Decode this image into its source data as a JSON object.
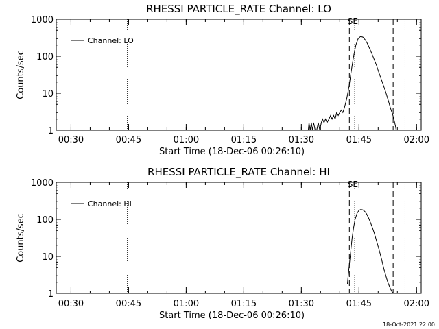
{
  "chart_data": [
    {
      "type": "line",
      "title": "RHESSI PARTICLE_RATE Channel: LO",
      "xlabel": "Start Time (18-Dec-06 00:26:10)",
      "ylabel": "Counts/sec",
      "yscale": "log",
      "ylim": [
        1,
        1000
      ],
      "xlim_minutes": [
        26.17,
        121.2
      ],
      "x_ticks": [
        {
          "min": 30,
          "label": "00:30"
        },
        {
          "min": 45,
          "label": "00:45"
        },
        {
          "min": 60,
          "label": "01:00"
        },
        {
          "min": 75,
          "label": "01:15"
        },
        {
          "min": 90,
          "label": "01:30"
        },
        {
          "min": 105,
          "label": "01:45"
        },
        {
          "min": 120,
          "label": "02:00"
        }
      ],
      "y_ticks": [
        {
          "value": 1,
          "label": "1"
        },
        {
          "value": 10,
          "label": "10"
        },
        {
          "value": 100,
          "label": "100"
        },
        {
          "value": 1000,
          "label": "1000"
        }
      ],
      "legend": {
        "label": "Channel: LO",
        "placement": "top-left"
      },
      "marker_letters": "SE",
      "dotted_lines_min": [
        44.7,
        103.9,
        117.0
      ],
      "dashed_lines_min": [
        102.5,
        113.9
      ],
      "series": [
        {
          "name": "Channel: LO",
          "x": [
            91.8,
            92.0,
            92.3,
            92.6,
            92.9,
            93.2,
            93.6,
            94.0,
            94.4,
            94.8,
            95.2,
            95.5,
            95.9,
            96.3,
            96.7,
            97.2,
            97.6,
            98.0,
            98.4,
            98.8,
            99.2,
            99.6,
            100.0,
            100.4,
            100.8,
            101.2,
            101.8,
            102.4,
            103.0,
            103.6,
            104.2,
            104.8,
            105.4,
            106.0,
            106.6,
            107.2,
            107.8,
            108.4,
            109.0,
            109.6,
            110.2,
            110.8,
            111.4,
            112.0,
            112.6,
            113.2,
            113.8,
            114.2,
            114.5,
            114.7
          ],
          "y": [
            1,
            1.6,
            1,
            1.6,
            1,
            1.6,
            1,
            1,
            1.6,
            1,
            1.6,
            2,
            1.6,
            2,
            1.6,
            2,
            2.5,
            2,
            2.5,
            2,
            3,
            2.5,
            3,
            3.5,
            3,
            4,
            7,
            15,
            40,
            100,
            200,
            300,
            340,
            330,
            280,
            220,
            160,
            115,
            80,
            55,
            36,
            24,
            16,
            10.5,
            6.5,
            4,
            2.6,
            1.8,
            1.3,
            1
          ]
        }
      ]
    },
    {
      "type": "line",
      "title": "RHESSI PARTICLE_RATE Channel: HI",
      "xlabel": "Start Time (18-Dec-06 00:26:10)",
      "ylabel": "Counts/sec",
      "yscale": "log",
      "ylim": [
        1,
        1000
      ],
      "xlim_minutes": [
        26.17,
        121.2
      ],
      "x_ticks": [
        {
          "min": 30,
          "label": "00:30"
        },
        {
          "min": 45,
          "label": "00:45"
        },
        {
          "min": 60,
          "label": "01:00"
        },
        {
          "min": 75,
          "label": "01:15"
        },
        {
          "min": 90,
          "label": "01:30"
        },
        {
          "min": 105,
          "label": "01:45"
        },
        {
          "min": 120,
          "label": "02:00"
        }
      ],
      "y_ticks": [
        {
          "value": 1,
          "label": "1"
        },
        {
          "value": 10,
          "label": "10"
        },
        {
          "value": 100,
          "label": "100"
        },
        {
          "value": 1000,
          "label": "1000"
        }
      ],
      "legend": {
        "label": "Channel: HI",
        "placement": "top-left"
      },
      "marker_letters": "SE",
      "dotted_lines_min": [
        44.7,
        103.9,
        117.0
      ],
      "dashed_lines_min": [
        102.5,
        113.9
      ],
      "series": [
        {
          "name": "Channel: HI",
          "x": [
            102.0,
            102.2,
            102.5,
            102.8,
            103.2,
            103.6,
            104.0,
            104.5,
            105.0,
            105.5,
            106.0,
            106.5,
            107.0,
            107.5,
            108.0,
            108.5,
            109.0,
            109.5,
            110.0,
            110.5,
            111.0,
            111.5,
            112.0,
            112.5,
            113.0,
            113.5,
            113.9
          ],
          "y": [
            1.8,
            3,
            6,
            12,
            30,
            60,
            100,
            145,
            175,
            185,
            180,
            165,
            140,
            110,
            82,
            60,
            42,
            28,
            18.5,
            12,
            7.5,
            4.5,
            3,
            2,
            1.5,
            1.15,
            1
          ]
        }
      ]
    }
  ],
  "footer": {
    "timestamp": "18-Oct-2021 22:00"
  }
}
